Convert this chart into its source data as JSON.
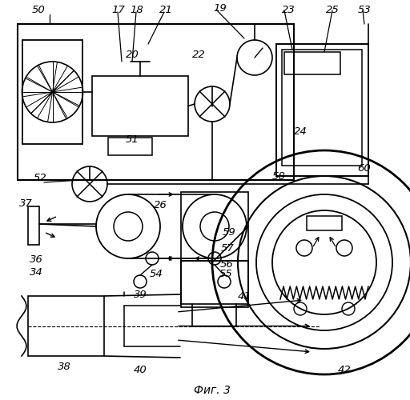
{
  "background_color": "#ffffff",
  "fig_label": "Фиг. 3"
}
